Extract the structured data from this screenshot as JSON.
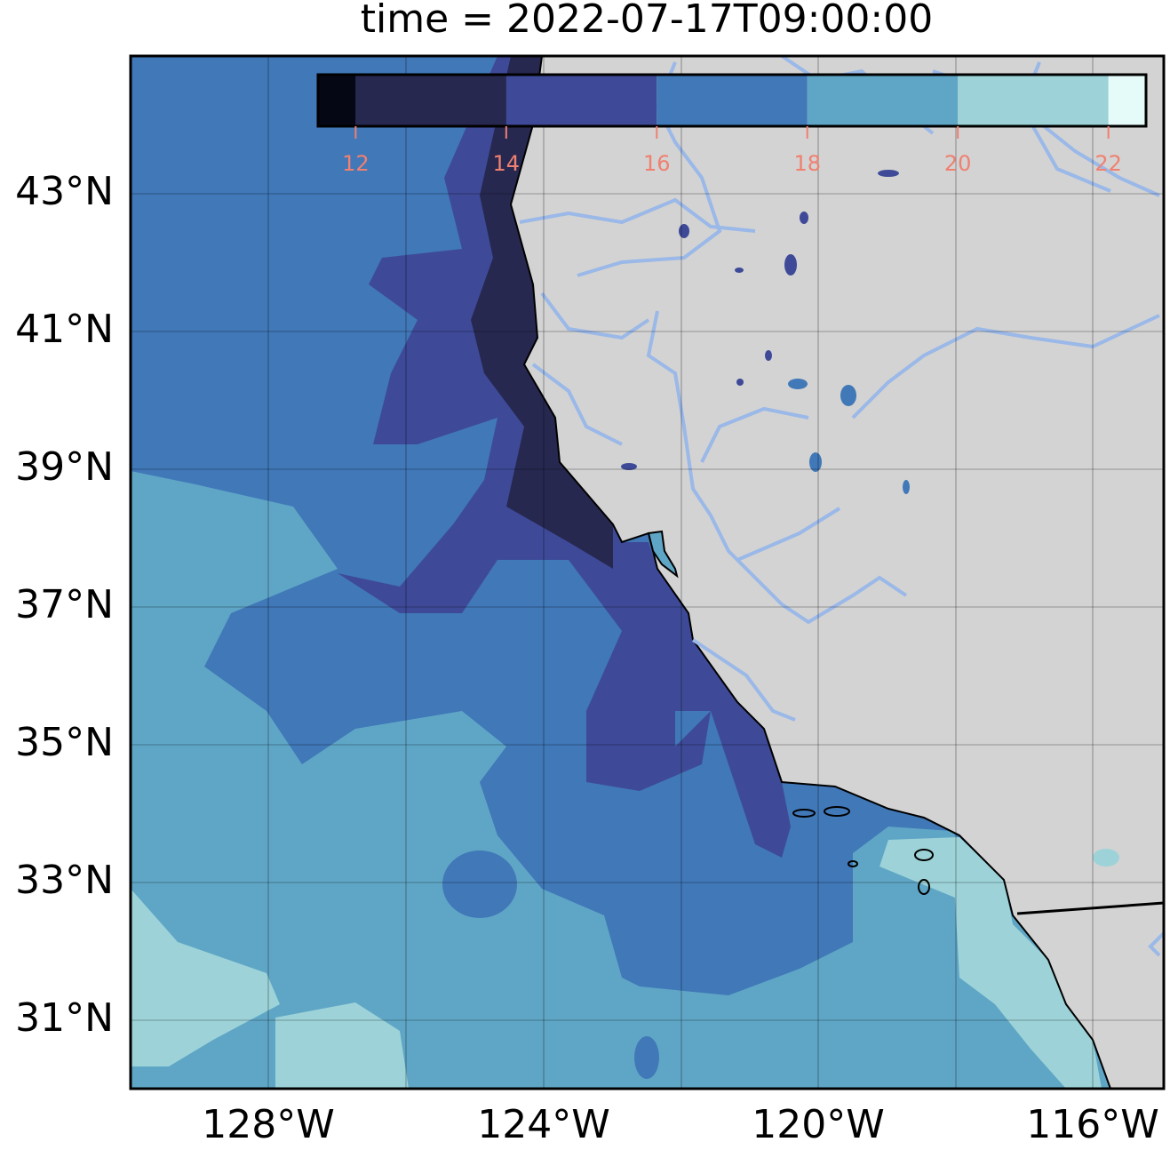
{
  "title": "time = 2022-07-17T09:00:00",
  "map": {
    "extent": {
      "lon_min": -130,
      "lon_max": -115,
      "lat_min": 30,
      "lat_max": 45
    },
    "lat_labels": [
      "43°N",
      "41°N",
      "39°N",
      "37°N",
      "35°N",
      "33°N",
      "31°N"
    ],
    "lon_labels": [
      "128°W",
      "124°W",
      "120°W",
      "116°W"
    ],
    "land_color": "#d3d3d3",
    "river_color": "#9ab8e8",
    "gridlines": true
  },
  "colorbar": {
    "ticks": [
      "12",
      "14",
      "16",
      "18",
      "20",
      "22"
    ],
    "tick_color": "#f08070",
    "levels": [
      11.5,
      12,
      14,
      16,
      18,
      20,
      22,
      22.5
    ],
    "colors": [
      "#050814",
      "#272850",
      "#3e4a98",
      "#4078b8",
      "#5fa6c6",
      "#9dd3d8",
      "#e5fbf9"
    ],
    "placement": "top inside"
  }
}
